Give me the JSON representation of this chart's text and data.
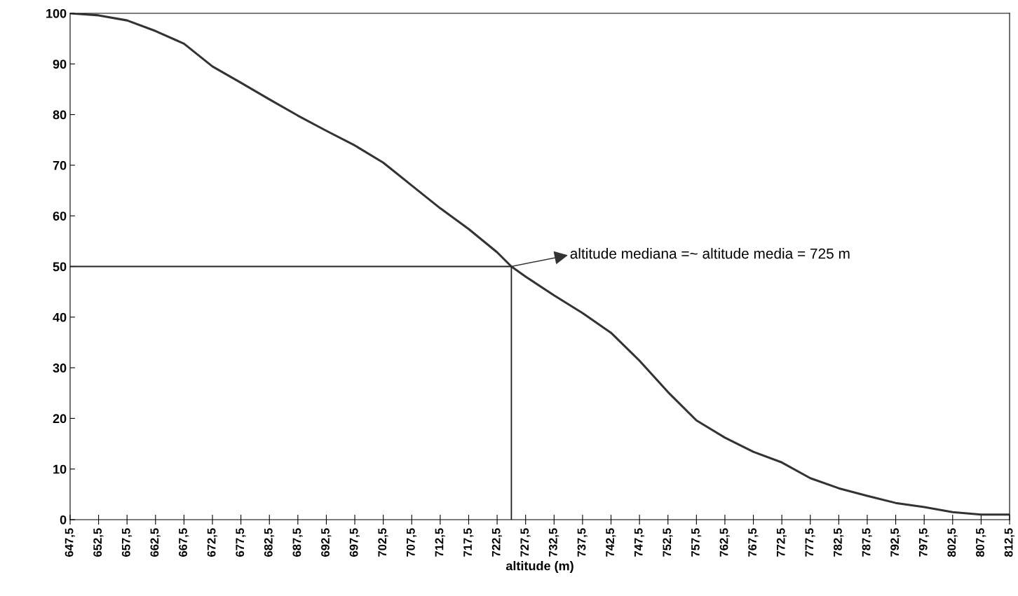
{
  "chart_data": {
    "type": "line",
    "xlabel": "altitude (m)",
    "xlim": [
      647.5,
      812.5
    ],
    "ylim": [
      0,
      100
    ],
    "xticks": [
      {
        "value": 647.5,
        "label": "647,5"
      },
      {
        "value": 652.5,
        "label": "652,5"
      },
      {
        "value": 657.5,
        "label": "657,5"
      },
      {
        "value": 662.5,
        "label": "662,5"
      },
      {
        "value": 667.5,
        "label": "667,5"
      },
      {
        "value": 672.5,
        "label": "672,5"
      },
      {
        "value": 677.5,
        "label": "677,5"
      },
      {
        "value": 682.5,
        "label": "682,5"
      },
      {
        "value": 687.5,
        "label": "687,5"
      },
      {
        "value": 692.5,
        "label": "692,5"
      },
      {
        "value": 697.5,
        "label": "697,5"
      },
      {
        "value": 702.5,
        "label": "702,5"
      },
      {
        "value": 707.5,
        "label": "707,5"
      },
      {
        "value": 712.5,
        "label": "712,5"
      },
      {
        "value": 717.5,
        "label": "717,5"
      },
      {
        "value": 722.5,
        "label": "722,5"
      },
      {
        "value": 727.5,
        "label": "727,5"
      },
      {
        "value": 732.5,
        "label": "732,5"
      },
      {
        "value": 737.5,
        "label": "737,5"
      },
      {
        "value": 742.5,
        "label": "742,5"
      },
      {
        "value": 747.5,
        "label": "747,5"
      },
      {
        "value": 752.5,
        "label": "752,5"
      },
      {
        "value": 757.5,
        "label": "757,5"
      },
      {
        "value": 762.5,
        "label": "762,5"
      },
      {
        "value": 767.5,
        "label": "767,5"
      },
      {
        "value": 772.5,
        "label": "772,5"
      },
      {
        "value": 777.5,
        "label": "777,5"
      },
      {
        "value": 782.5,
        "label": "782,5"
      },
      {
        "value": 787.5,
        "label": "787,5"
      },
      {
        "value": 792.5,
        "label": "792,5"
      },
      {
        "value": 797.5,
        "label": "797,5"
      },
      {
        "value": 802.5,
        "label": "802,5"
      },
      {
        "value": 807.5,
        "label": "807,5"
      },
      {
        "value": 812.5,
        "label": "812,5"
      }
    ],
    "yticks": [
      0,
      10,
      20,
      30,
      40,
      50,
      60,
      70,
      80,
      90,
      100
    ],
    "grid": false,
    "legend": false,
    "marker": "none",
    "line_style": "solid",
    "series": [
      {
        "color": "#333333",
        "x": [
          647.5,
          652.5,
          657.5,
          662.5,
          667.5,
          672.5,
          677.5,
          682.5,
          687.5,
          692.5,
          697.5,
          702.5,
          707.5,
          712.5,
          717.5,
          722.5,
          725,
          727.5,
          732.5,
          737.5,
          742.5,
          747.5,
          752.5,
          757.5,
          762.5,
          767.5,
          772.5,
          777.5,
          782.5,
          787.5,
          792.5,
          797.5,
          802.5,
          807.5,
          812.5
        ],
        "values": [
          100,
          99.6,
          98.6,
          96.5,
          94,
          89.5,
          86.3,
          83,
          79.8,
          76.8,
          73.9,
          70.5,
          66,
          61.5,
          57.4,
          52.8,
          50,
          48,
          44.3,
          40.8,
          36.9,
          31.4,
          25.2,
          19.6,
          16.2,
          13.4,
          11.3,
          8.2,
          6.2,
          4.7,
          3.3,
          2.5,
          1.5,
          1,
          1
        ]
      },
      {
        "color": "#222222",
        "x": [
          647.5,
          725,
          725
        ],
        "values": [
          50,
          50,
          0
        ]
      }
    ],
    "annotations": [
      {
        "text": "altitude mediana =~ altitude media = 725 m",
        "x": 725,
        "y": 50
      }
    ]
  }
}
